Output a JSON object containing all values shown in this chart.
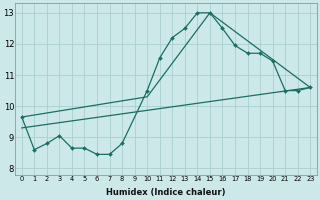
{
  "xlabel": "Humidex (Indice chaleur)",
  "ylabel": "",
  "xlim": [
    -0.5,
    23.5
  ],
  "ylim": [
    7.8,
    13.3
  ],
  "bg_color": "#cde8e8",
  "grid_color": "#aacece",
  "line_color": "#1a6e65",
  "xticks": [
    0,
    1,
    2,
    3,
    4,
    5,
    6,
    7,
    8,
    9,
    10,
    11,
    12,
    13,
    14,
    15,
    16,
    17,
    18,
    19,
    20,
    21,
    22,
    23
  ],
  "yticks": [
    8,
    9,
    10,
    11,
    12,
    13
  ],
  "line1_x": [
    0,
    1,
    2,
    3,
    4,
    5,
    6,
    7,
    8,
    10,
    11,
    12,
    13,
    14,
    15,
    16,
    17,
    18,
    19,
    20,
    21,
    22,
    23
  ],
  "line1_y": [
    9.65,
    8.6,
    8.8,
    9.05,
    8.65,
    8.65,
    8.45,
    8.45,
    8.8,
    10.5,
    11.55,
    12.2,
    12.5,
    13.0,
    13.0,
    12.5,
    11.95,
    11.7,
    11.7,
    11.45,
    10.5,
    10.5,
    10.6
  ],
  "line2_x": [
    0,
    10,
    15,
    23
  ],
  "line2_y": [
    9.65,
    10.3,
    13.0,
    10.6
  ],
  "line3_x": [
    0,
    23
  ],
  "line3_y": [
    9.3,
    10.6
  ]
}
